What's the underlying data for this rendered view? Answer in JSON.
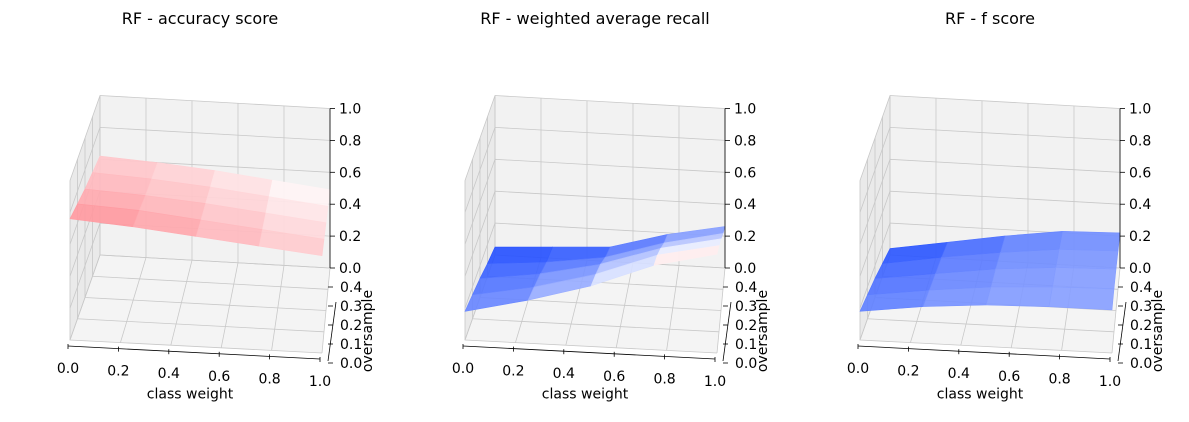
{
  "chart_data": [
    {
      "type": "surface3d",
      "title": "RF - accuracy score",
      "xlabel": "class weight",
      "ylabel": "oversample",
      "zlabel": "",
      "x_ticks": [
        "0.0",
        "0.2",
        "0.4",
        "0.6",
        "0.8",
        "1.0"
      ],
      "y_ticks": [
        "0.0",
        "0.1",
        "0.2",
        "0.3",
        "0.4"
      ],
      "z_ticks": [
        "0.0",
        "0.2",
        "0.4",
        "0.6",
        "0.8",
        "1.0"
      ],
      "xlim": [
        0,
        1
      ],
      "ylim": [
        0,
        0.4
      ],
      "zlim": [
        0,
        1
      ],
      "grid": true,
      "colormap": "bwr",
      "x": [
        0.0,
        0.25,
        0.5,
        0.75,
        1.0
      ],
      "y": [
        0.0,
        0.1,
        0.2,
        0.3,
        0.4
      ],
      "z": [
        [
          0.62,
          0.6,
          0.57,
          0.53,
          0.49
        ],
        [
          0.65,
          0.63,
          0.6,
          0.56,
          0.52
        ],
        [
          0.68,
          0.66,
          0.63,
          0.59,
          0.55
        ],
        [
          0.72,
          0.7,
          0.66,
          0.62,
          0.58
        ],
        [
          0.76,
          0.73,
          0.69,
          0.65,
          0.61
        ]
      ]
    },
    {
      "type": "surface3d",
      "title": "RF - weighted average recall",
      "xlabel": "class weight",
      "ylabel": "oversample",
      "zlabel": "",
      "x_ticks": [
        "0.0",
        "0.2",
        "0.4",
        "0.6",
        "0.8",
        "1.0"
      ],
      "y_ticks": [
        "0.0",
        "0.1",
        "0.2",
        "0.3",
        "0.4"
      ],
      "z_ticks": [
        "0.0",
        "0.2",
        "0.4",
        "0.6",
        "0.8",
        "1.0"
      ],
      "xlim": [
        0,
        1
      ],
      "ylim": [
        0,
        0.4
      ],
      "zlim": [
        0,
        1
      ],
      "grid": true,
      "colormap": "bwr",
      "x": [
        0.0,
        0.25,
        0.5,
        0.75,
        1.0
      ],
      "y": [
        0.0,
        0.1,
        0.2,
        0.3,
        0.4
      ],
      "z": [
        [
          0.05,
          0.07,
          0.09,
          0.19,
          0.26
        ],
        [
          0.08,
          0.11,
          0.16,
          0.27,
          0.35
        ],
        [
          0.12,
          0.17,
          0.25,
          0.37,
          0.45
        ],
        [
          0.15,
          0.22,
          0.32,
          0.46,
          0.54
        ],
        [
          0.18,
          0.27,
          0.38,
          0.53,
          0.62
        ]
      ]
    },
    {
      "type": "surface3d",
      "title": "RF - f score",
      "xlabel": "class weight",
      "ylabel": "oversample",
      "zlabel": "",
      "x_ticks": [
        "0.0",
        "0.2",
        "0.4",
        "0.6",
        "0.8",
        "1.0"
      ],
      "y_ticks": [
        "0.0",
        "0.1",
        "0.2",
        "0.3",
        "0.4"
      ],
      "z_ticks": [
        "0.0",
        "0.2",
        "0.4",
        "0.6",
        "0.8",
        "1.0"
      ],
      "xlim": [
        0,
        1
      ],
      "ylim": [
        0,
        0.4
      ],
      "zlim": [
        0,
        1
      ],
      "grid": true,
      "colormap": "bwr",
      "x": [
        0.0,
        0.25,
        0.5,
        0.75,
        1.0
      ],
      "y": [
        0.0,
        0.1,
        0.2,
        0.3,
        0.4
      ],
      "z": [
        [
          0.04,
          0.1,
          0.16,
          0.21,
          0.22
        ],
        [
          0.08,
          0.14,
          0.19,
          0.23,
          0.24
        ],
        [
          0.12,
          0.17,
          0.22,
          0.25,
          0.26
        ],
        [
          0.15,
          0.2,
          0.24,
          0.26,
          0.27
        ],
        [
          0.18,
          0.23,
          0.26,
          0.27,
          0.27
        ]
      ]
    }
  ],
  "colors": {
    "low": "#0033ff",
    "mid": "#ffffff",
    "high": "#ff2030",
    "grid": "#c8c8c8",
    "pane": "#f2f2f2"
  }
}
